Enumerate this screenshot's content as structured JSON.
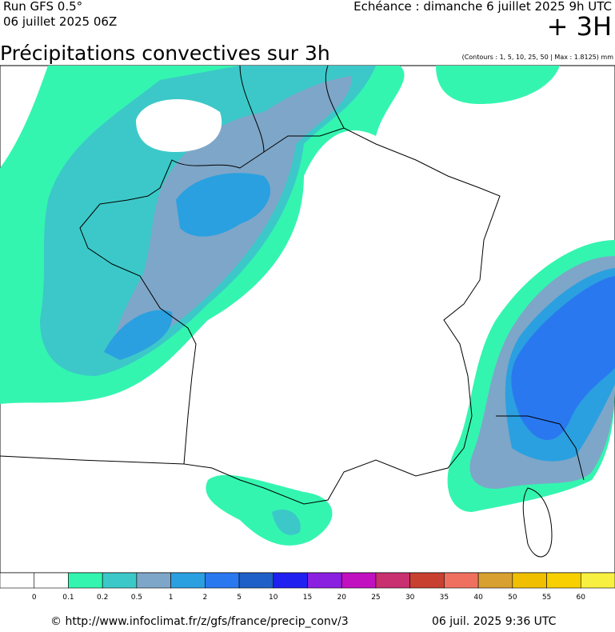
{
  "header": {
    "run": "Run GFS 0.5°",
    "run_date": "06 juillet 2025 06Z",
    "forecast": "Echéance : dimanche 6 juillet 2025 9h UTC",
    "lead": "+ 3H",
    "title": "Précipitations convectives sur 3h",
    "note": "(Contours : 1, 5, 10, 25, 50 | Max : 1.8125) mm"
  },
  "legend": {
    "colors": [
      "#ffffff",
      "#ffffff",
      "#33f5b0",
      "#3cc8c8",
      "#7ea6c8",
      "#2aa0e0",
      "#2a78f0",
      "#1f5fc8",
      "#2020f0",
      "#8a20e0",
      "#c010c0",
      "#c83070",
      "#c84030",
      "#f07060",
      "#d8a030",
      "#f0c000",
      "#f8d000",
      "#f8f040"
    ],
    "labels": [
      0,
      0.1,
      0.2,
      0.5,
      1,
      2,
      5,
      10,
      15,
      20,
      25,
      30,
      35,
      40,
      50,
      55,
      60
    ]
  },
  "footer": {
    "source": "© http://www.infoclimat.fr/z/gfs/france/precip_conv/3",
    "timestamp": "06 juil. 2025  9:36 UTC"
  }
}
